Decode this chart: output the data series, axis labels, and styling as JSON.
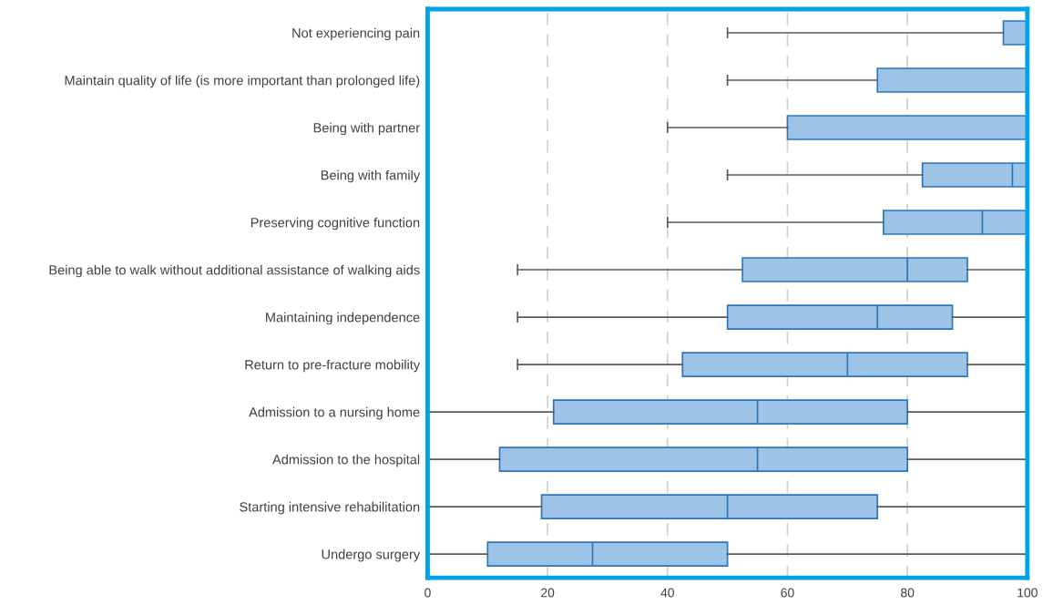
{
  "chart_data": {
    "type": "box",
    "orientation": "horizontal",
    "categories": [
      "Not experiencing pain",
      "Maintain quality of life (is more important than prolonged life)",
      "Being with partner",
      "Being with family",
      "Preserving cognitive function",
      "Being able to walk without additional assistance of walking aids",
      "Maintaining independence",
      "Return to pre-fracture mobility",
      "Admission to a nursing home",
      "Admission to the hospital",
      "Starting intensive rehabilitation",
      "Undergo surgery"
    ],
    "boxes": [
      {
        "low": 50,
        "q1": 96,
        "median": 100,
        "q3": 100,
        "high": 100
      },
      {
        "low": 50,
        "q1": 75,
        "median": 100,
        "q3": 100,
        "high": 100
      },
      {
        "low": 40,
        "q1": 60,
        "median": 100,
        "q3": 100,
        "high": 100
      },
      {
        "low": 50,
        "q1": 82.5,
        "median": 97.5,
        "q3": 100,
        "high": 100
      },
      {
        "low": 40,
        "q1": 76,
        "median": 92.5,
        "q3": 100,
        "high": 100
      },
      {
        "low": 15,
        "q1": 52.5,
        "median": 80,
        "q3": 90,
        "high": 100
      },
      {
        "low": 15,
        "q1": 50,
        "median": 75,
        "q3": 87.5,
        "high": 100
      },
      {
        "low": 15,
        "q1": 42.5,
        "median": 70,
        "q3": 90,
        "high": 100
      },
      {
        "low": 0,
        "q1": 21,
        "median": 55,
        "q3": 80,
        "high": 100
      },
      {
        "low": 0,
        "q1": 12,
        "median": 55,
        "q3": 80,
        "high": 100
      },
      {
        "low": 0,
        "q1": 19,
        "median": 50,
        "q3": 75,
        "high": 100
      },
      {
        "low": 0,
        "q1": 10,
        "median": 27.5,
        "q3": 50,
        "high": 100
      }
    ],
    "color": "#9dc3e6",
    "xlim": [
      0,
      100
    ],
    "xticks": [
      0,
      20,
      40,
      60,
      80,
      100
    ],
    "grid": "x",
    "tick_labels": "xy"
  }
}
